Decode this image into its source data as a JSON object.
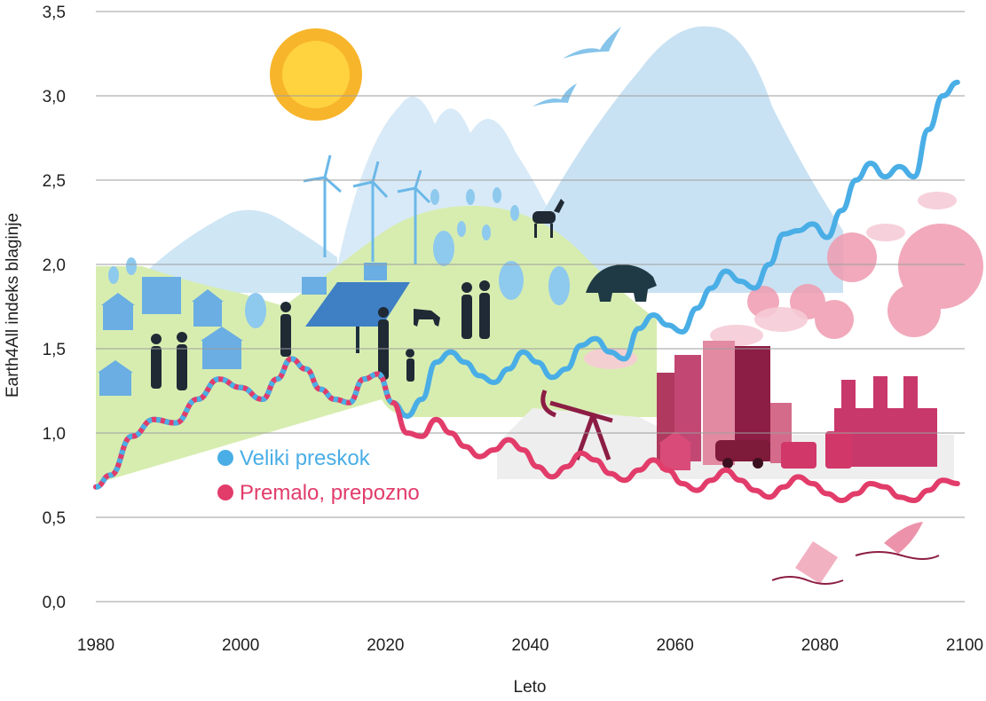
{
  "chart_data": {
    "type": "line",
    "xlabel": "Leto",
    "ylabel": "Earth4All indeks blaginje",
    "xlim": [
      1980,
      2100
    ],
    "ylim": [
      0.0,
      3.5
    ],
    "x_ticks": [
      "1980",
      "2000",
      "2020",
      "2040",
      "2060",
      "2080",
      "2100"
    ],
    "y_ticks": [
      "0,0",
      "0,5",
      "1,0",
      "1,5",
      "2,0",
      "2,5",
      "3,0",
      "3,5"
    ],
    "grid": true,
    "legend_position": "center-left",
    "series": [
      {
        "name": "Veliki preskok",
        "color": "#4aaee6",
        "x": [
          1980,
          1982,
          1985,
          1988,
          1991,
          1994,
          1997,
          2000,
          2003,
          2005,
          2007,
          2009,
          2011,
          2013,
          2015,
          2017,
          2019,
          2021,
          2023,
          2025,
          2027,
          2029,
          2031,
          2033,
          2035,
          2037,
          2039,
          2041,
          2043,
          2045,
          2047,
          2049,
          2051,
          2053,
          2055,
          2057,
          2059,
          2061,
          2063,
          2065,
          2067,
          2069,
          2071,
          2073,
          2075,
          2077,
          2079,
          2081,
          2083,
          2085,
          2087,
          2089,
          2091,
          2093,
          2095,
          2097,
          2099
        ],
        "values": [
          0.68,
          0.75,
          0.98,
          1.08,
          1.06,
          1.2,
          1.32,
          1.27,
          1.2,
          1.32,
          1.44,
          1.38,
          1.26,
          1.2,
          1.18,
          1.32,
          1.35,
          1.18,
          1.1,
          1.2,
          1.42,
          1.48,
          1.42,
          1.34,
          1.3,
          1.38,
          1.48,
          1.42,
          1.33,
          1.38,
          1.52,
          1.56,
          1.48,
          1.44,
          1.62,
          1.7,
          1.64,
          1.6,
          1.74,
          1.86,
          1.96,
          1.9,
          1.86,
          2.0,
          2.18,
          2.2,
          2.24,
          2.16,
          2.32,
          2.5,
          2.6,
          2.52,
          2.58,
          2.52,
          2.8,
          3.0,
          3.08
        ]
      },
      {
        "name": "Premalo, prepozno",
        "color": "#e23c6a",
        "x": [
          1980,
          1982,
          1985,
          1988,
          1991,
          1994,
          1997,
          2000,
          2003,
          2005,
          2007,
          2009,
          2011,
          2013,
          2015,
          2017,
          2019,
          2021,
          2023,
          2025,
          2027,
          2029,
          2031,
          2033,
          2035,
          2037,
          2039,
          2041,
          2043,
          2045,
          2047,
          2049,
          2051,
          2053,
          2055,
          2057,
          2059,
          2061,
          2063,
          2065,
          2067,
          2069,
          2071,
          2073,
          2075,
          2077,
          2079,
          2081,
          2083,
          2085,
          2087,
          2089,
          2091,
          2093,
          2095,
          2097,
          2099
        ],
        "values": [
          0.68,
          0.75,
          0.98,
          1.08,
          1.06,
          1.2,
          1.32,
          1.27,
          1.2,
          1.32,
          1.44,
          1.38,
          1.26,
          1.2,
          1.18,
          1.32,
          1.35,
          1.18,
          1.0,
          0.98,
          1.08,
          1.0,
          0.92,
          0.86,
          0.9,
          0.96,
          0.9,
          0.8,
          0.74,
          0.8,
          0.88,
          0.84,
          0.76,
          0.72,
          0.78,
          0.84,
          0.78,
          0.7,
          0.66,
          0.72,
          0.78,
          0.72,
          0.66,
          0.62,
          0.68,
          0.74,
          0.7,
          0.64,
          0.6,
          0.64,
          0.7,
          0.68,
          0.62,
          0.6,
          0.66,
          0.72,
          0.7
        ]
      }
    ]
  },
  "colors": {
    "grid": "#9e9e9e",
    "hill_green": "#d9efb4",
    "mountain_blue": "#bcdcf1",
    "pollution_pink": "#e7899f",
    "industry_dark": "#8a1a3e",
    "sun": "#f6a91b"
  }
}
